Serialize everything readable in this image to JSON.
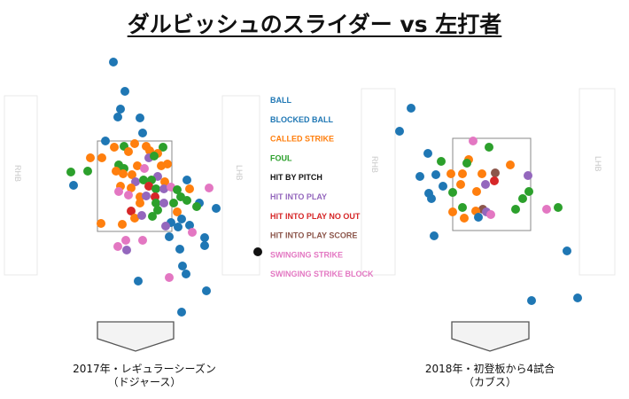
{
  "title": "ダルビッシュのスライダー vs 左打者",
  "batter_labels": {
    "left": "RHB",
    "right": "LHB"
  },
  "captions": [
    {
      "line1": "2017年・レギュラーシーズン",
      "line2": "（ドジャース）"
    },
    {
      "line1": "2018年・初登板から4試合",
      "line2": "（カブス）"
    }
  ],
  "chart_data": [
    {
      "type": "scatter",
      "title": "2017年・レギュラーシーズン（ドジャース）",
      "legend": [
        {
          "label": "BALL",
          "color": "#1f77b4"
        },
        {
          "label": "BLOCKED BALL",
          "color": "#1f77b4"
        },
        {
          "label": "CALLED STRIKE",
          "color": "#ff7f0e"
        },
        {
          "label": "FOUL",
          "color": "#2ca02c"
        },
        {
          "label": "HIT BY PITCH",
          "color": "#111111"
        },
        {
          "label": "HIT INTO PLAY",
          "color": "#9467bd"
        },
        {
          "label": "HIT INTO PLAY NO OUT",
          "color": "#d62728"
        },
        {
          "label": "HIT INTO PLAY SCORE",
          "color": "#8c564b"
        },
        {
          "label": "SWINGING STRIKE",
          "color": "#e377c2"
        },
        {
          "label": "SWINGING STRIKE BLOCK",
          "color": "#e377c2"
        }
      ],
      "points": [
        {
          "x": 0.43,
          "y": 0.06,
          "r": "BALL"
        },
        {
          "x": 0.48,
          "y": 0.16,
          "r": "BALL"
        },
        {
          "x": 0.45,
          "y": 0.24,
          "r": "BALL"
        },
        {
          "x": 0.49,
          "y": 0.26,
          "r": "BALL"
        },
        {
          "x": 0.58,
          "y": 0.26,
          "r": "BALL"
        },
        {
          "x": 0.61,
          "y": 0.29,
          "r": "BALL"
        },
        {
          "x": 0.4,
          "y": 0.35,
          "r": "BALL"
        },
        {
          "x": 0.52,
          "y": 0.33,
          "r": "BALL"
        },
        {
          "x": 0.33,
          "y": 0.55,
          "r": "BALL"
        },
        {
          "x": 0.27,
          "y": 0.5,
          "r": "GREEN"
        },
        {
          "x": 0.84,
          "y": 0.57,
          "r": "BALL"
        },
        {
          "x": 0.91,
          "y": 0.57,
          "r": "BALL"
        },
        {
          "x": 0.93,
          "y": 0.73,
          "r": "BALL"
        },
        {
          "x": 0.71,
          "y": 0.67,
          "r": "BALL"
        },
        {
          "x": 0.7,
          "y": 0.78,
          "r": "BALL"
        },
        {
          "x": 0.66,
          "y": 0.79,
          "r": "BALL"
        },
        {
          "x": 0.79,
          "y": 0.83,
          "r": "BALL"
        },
        {
          "x": 0.75,
          "y": 0.9,
          "r": "BALL"
        },
        {
          "x": 0.88,
          "y": 0.91,
          "r": "BALL"
        },
        {
          "x": 0.82,
          "y": 1.03,
          "r": "BALL"
        },
        {
          "x": 0.86,
          "y": 1.08,
          "r": "BALL"
        },
        {
          "x": 0.89,
          "y": 1.12,
          "r": "BALL"
        },
        {
          "x": 0.79,
          "y": 1.08,
          "r": "BALL"
        },
        {
          "x": 0.82,
          "y": 1.25,
          "r": "BALL"
        },
        {
          "x": 0.95,
          "y": 1.29,
          "r": "BALL"
        },
        {
          "x": 0.53,
          "y": 1.32,
          "r": "BALL"
        },
        {
          "x": 0.81,
          "y": 1.42,
          "r": "BALL"
        }
      ]
    }
  ]
}
